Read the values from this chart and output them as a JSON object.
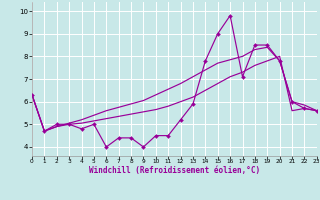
{
  "xlabel": "Windchill (Refroidissement éolien,°C)",
  "background_color": "#c8e8e8",
  "line_color": "#990099",
  "grid_color": "#ffffff",
  "xlim": [
    0,
    23
  ],
  "ylim": [
    3.6,
    10.4
  ],
  "yticks": [
    4,
    5,
    6,
    7,
    8,
    9,
    10
  ],
  "xticks": [
    0,
    1,
    2,
    3,
    4,
    5,
    6,
    7,
    8,
    9,
    10,
    11,
    12,
    13,
    14,
    15,
    16,
    17,
    18,
    19,
    20,
    21,
    22,
    23
  ],
  "x": [
    0,
    1,
    2,
    3,
    4,
    5,
    6,
    7,
    8,
    9,
    10,
    11,
    12,
    13,
    14,
    15,
    16,
    17,
    18,
    19,
    20,
    21,
    22,
    23
  ],
  "main_y": [
    6.3,
    4.7,
    5.0,
    5.0,
    4.8,
    5.0,
    4.0,
    4.4,
    4.4,
    4.0,
    4.5,
    4.5,
    5.2,
    5.9,
    7.8,
    9.0,
    9.8,
    7.1,
    8.5,
    8.5,
    7.8,
    6.0,
    5.7,
    5.6
  ],
  "trend1_y": [
    6.3,
    4.7,
    4.9,
    5.0,
    5.05,
    5.15,
    5.25,
    5.35,
    5.45,
    5.55,
    5.65,
    5.8,
    6.0,
    6.2,
    6.5,
    6.8,
    7.1,
    7.3,
    7.6,
    7.8,
    8.0,
    5.6,
    5.7,
    5.6
  ],
  "trend2_y": [
    6.3,
    4.7,
    4.9,
    5.05,
    5.2,
    5.4,
    5.6,
    5.75,
    5.9,
    6.05,
    6.3,
    6.55,
    6.8,
    7.1,
    7.4,
    7.7,
    7.85,
    8.0,
    8.3,
    8.4,
    7.8,
    6.0,
    5.85,
    5.6
  ]
}
